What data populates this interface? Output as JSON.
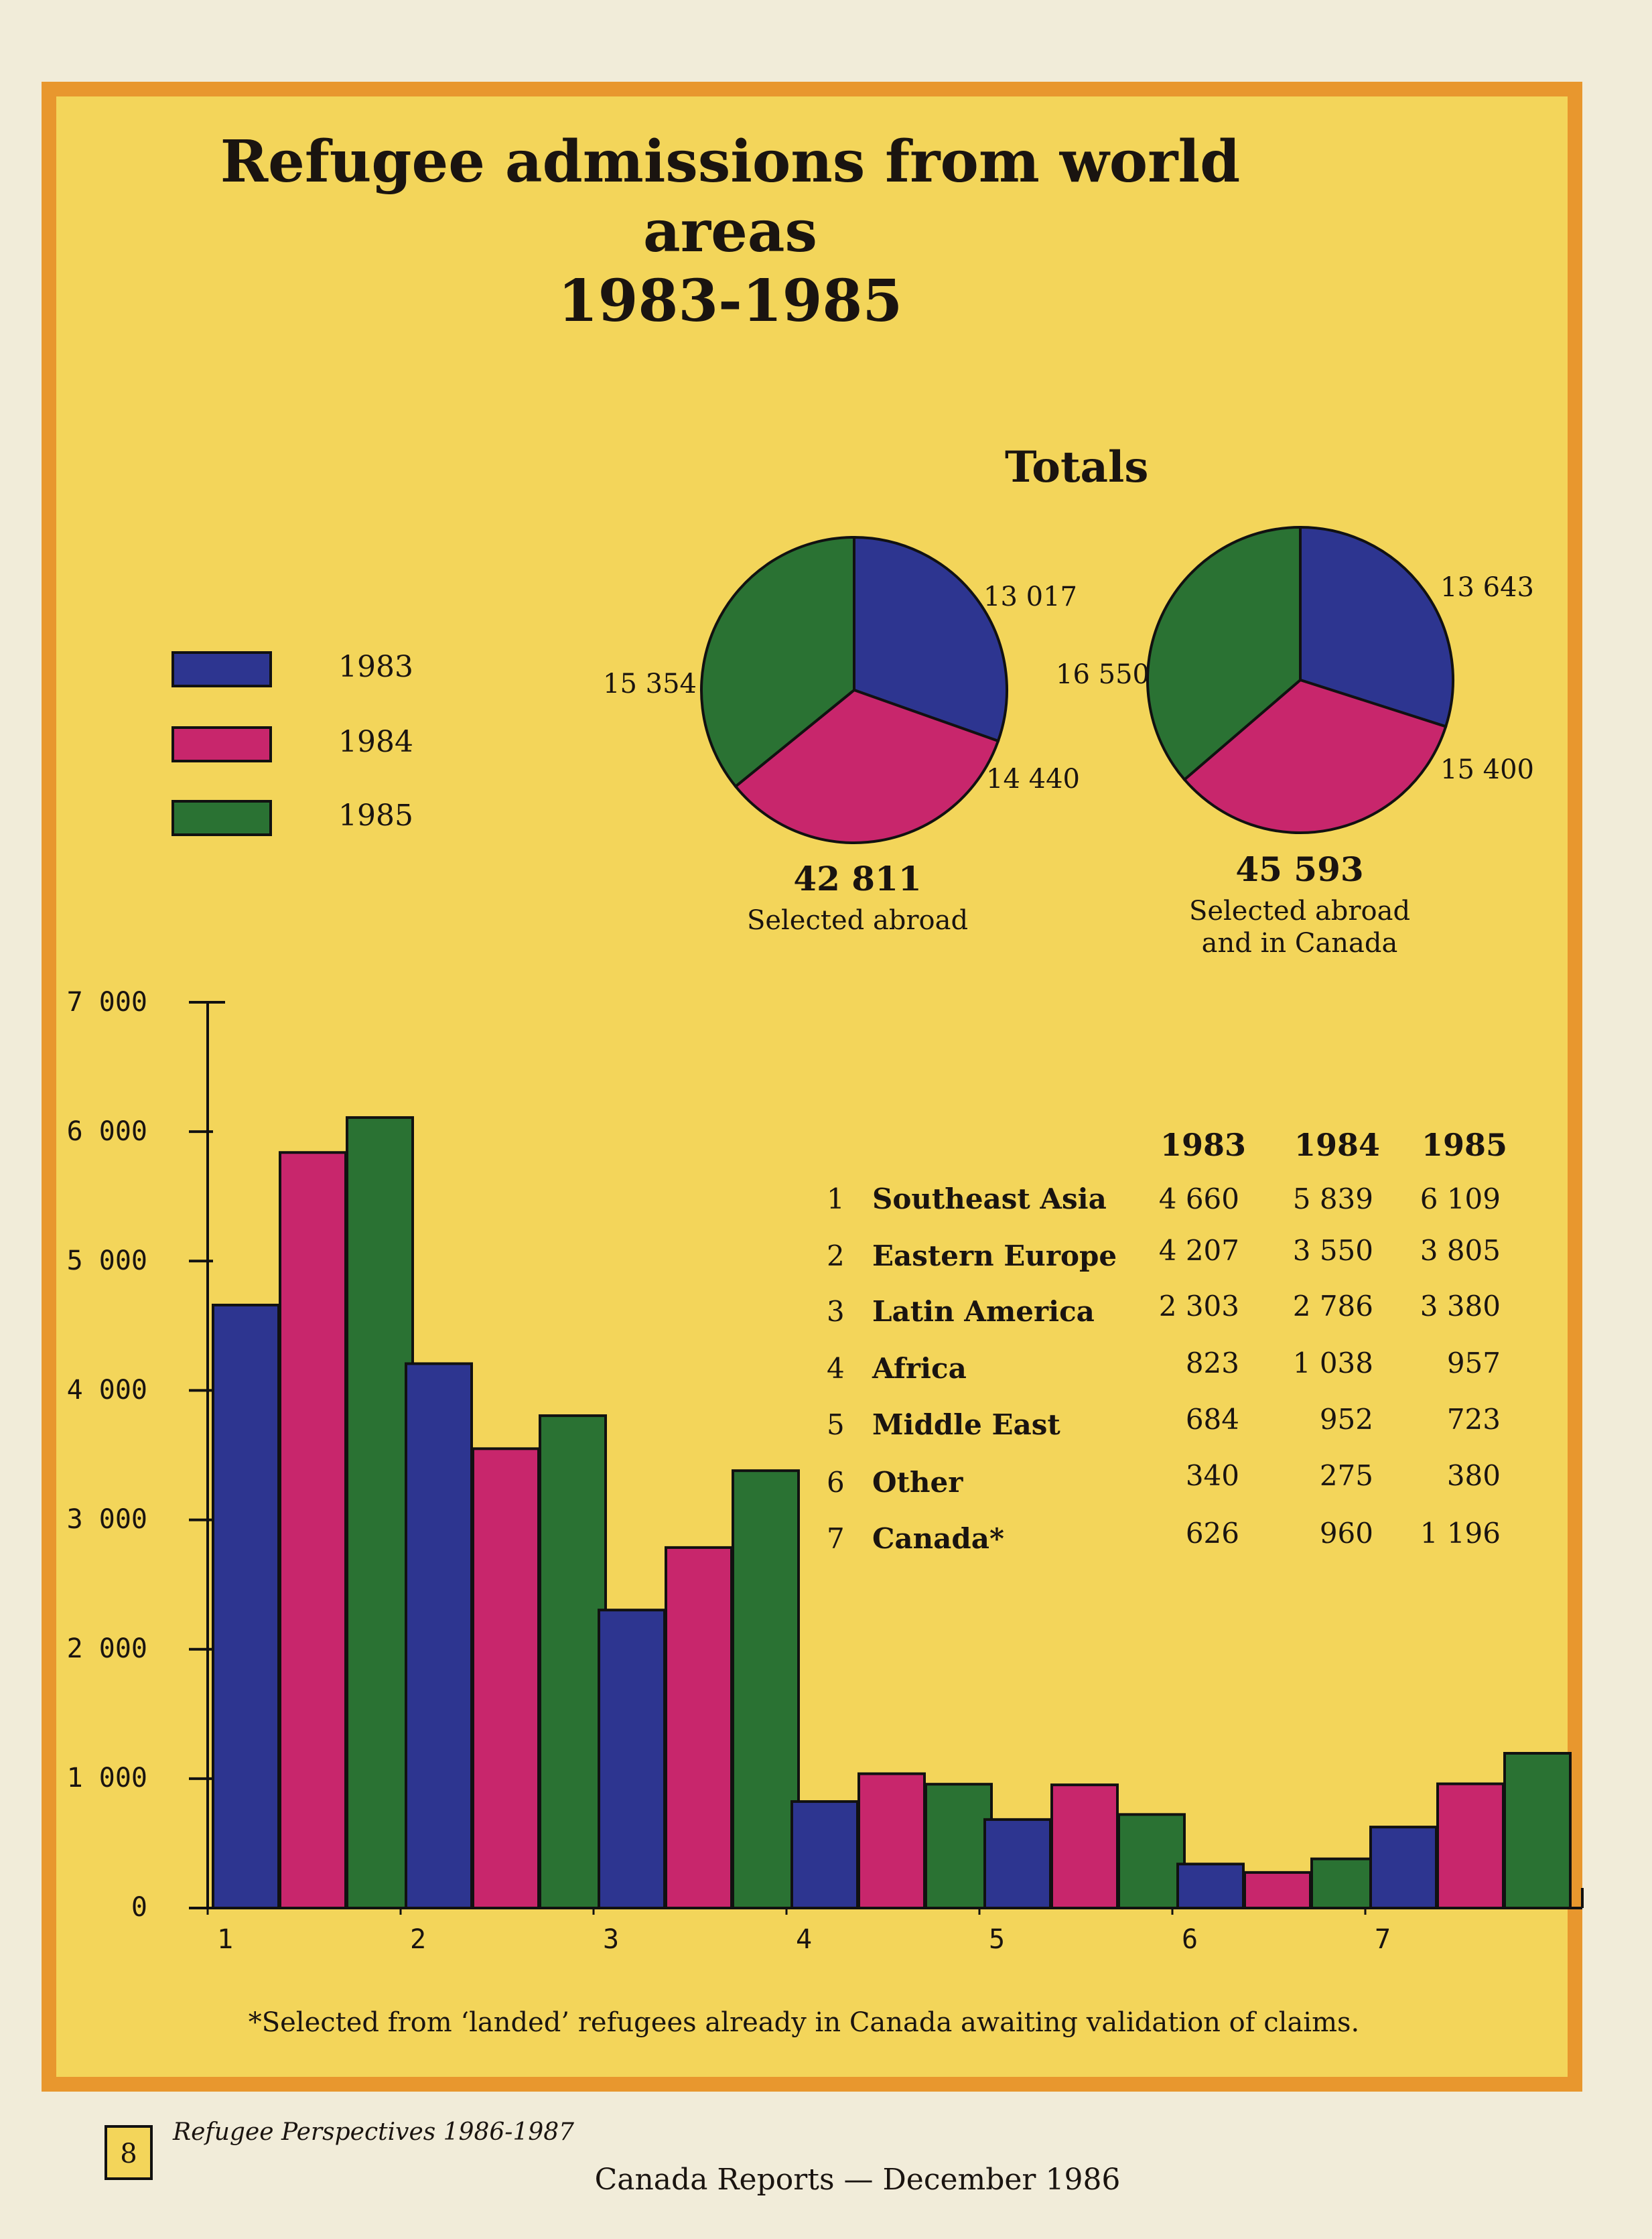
{
  "title_line1": "Refugee admissions from world areas",
  "title_line2": "1983-1985",
  "totals_heading": "Totals",
  "legend": [
    {
      "label": "1983",
      "color": "#2d3590"
    },
    {
      "label": "1984",
      "color": "#c8266c"
    },
    {
      "label": "1985",
      "color": "#2a7233"
    }
  ],
  "pies": [
    {
      "slices": [
        13017,
        14440,
        15354
      ],
      "labels": [
        "13 017",
        "14 440",
        "15 354"
      ],
      "total": "42 811",
      "caption_line1": "Selected abroad",
      "caption_line2": ""
    },
    {
      "slices": [
        13643,
        15400,
        16550
      ],
      "labels": [
        "13 643",
        "15 400",
        "16 550"
      ],
      "total": "45 593",
      "caption_line1": "Selected abroad",
      "caption_line2": "and in Canada"
    }
  ],
  "table": {
    "headers": [
      "1983",
      "1984",
      "1985"
    ],
    "rows": [
      {
        "num": "1",
        "name": "Southeast Asia",
        "v": [
          "4 660",
          "5 839",
          "6 109"
        ]
      },
      {
        "num": "2",
        "name": "Eastern Europe",
        "v": [
          "4 207",
          "3 550",
          "3 805"
        ]
      },
      {
        "num": "3",
        "name": "Latin America",
        "v": [
          "2 303",
          "2 786",
          "3 380"
        ]
      },
      {
        "num": "4",
        "name": "Africa",
        "v": [
          "823",
          "1 038",
          "957"
        ]
      },
      {
        "num": "5",
        "name": "Middle East",
        "v": [
          "684",
          "952",
          "723"
        ]
      },
      {
        "num": "6",
        "name": "Other",
        "v": [
          "340",
          "275",
          "380"
        ]
      },
      {
        "num": "7",
        "name": "Canada*",
        "v": [
          "626",
          "960",
          "1 196"
        ]
      }
    ]
  },
  "chart_data": {
    "type": "bar",
    "categories": [
      "1",
      "2",
      "3",
      "4",
      "5",
      "6",
      "7"
    ],
    "series": [
      {
        "name": "1983",
        "values": [
          4660,
          4207,
          2303,
          823,
          684,
          340,
          626
        ],
        "color": "#2d3590"
      },
      {
        "name": "1984",
        "values": [
          5839,
          3550,
          2786,
          1038,
          952,
          275,
          960
        ],
        "color": "#c8266c"
      },
      {
        "name": "1985",
        "values": [
          6109,
          3805,
          3380,
          957,
          723,
          380,
          1196
        ],
        "color": "#2a7233"
      }
    ],
    "yticks": [
      "0",
      "1 000",
      "2 000",
      "3 000",
      "4 000",
      "5 000",
      "6 000",
      "7 000"
    ],
    "ylim": [
      0,
      7000
    ],
    "grid": false,
    "legend": "left"
  },
  "footnote": "*Selected from ‘landed’ refugees already in Canada awaiting validation of claims.",
  "page_number": "8",
  "series_title": "Refugee Perspectives 1986-1987",
  "magazine_footer": "Canada Reports — December 1986"
}
